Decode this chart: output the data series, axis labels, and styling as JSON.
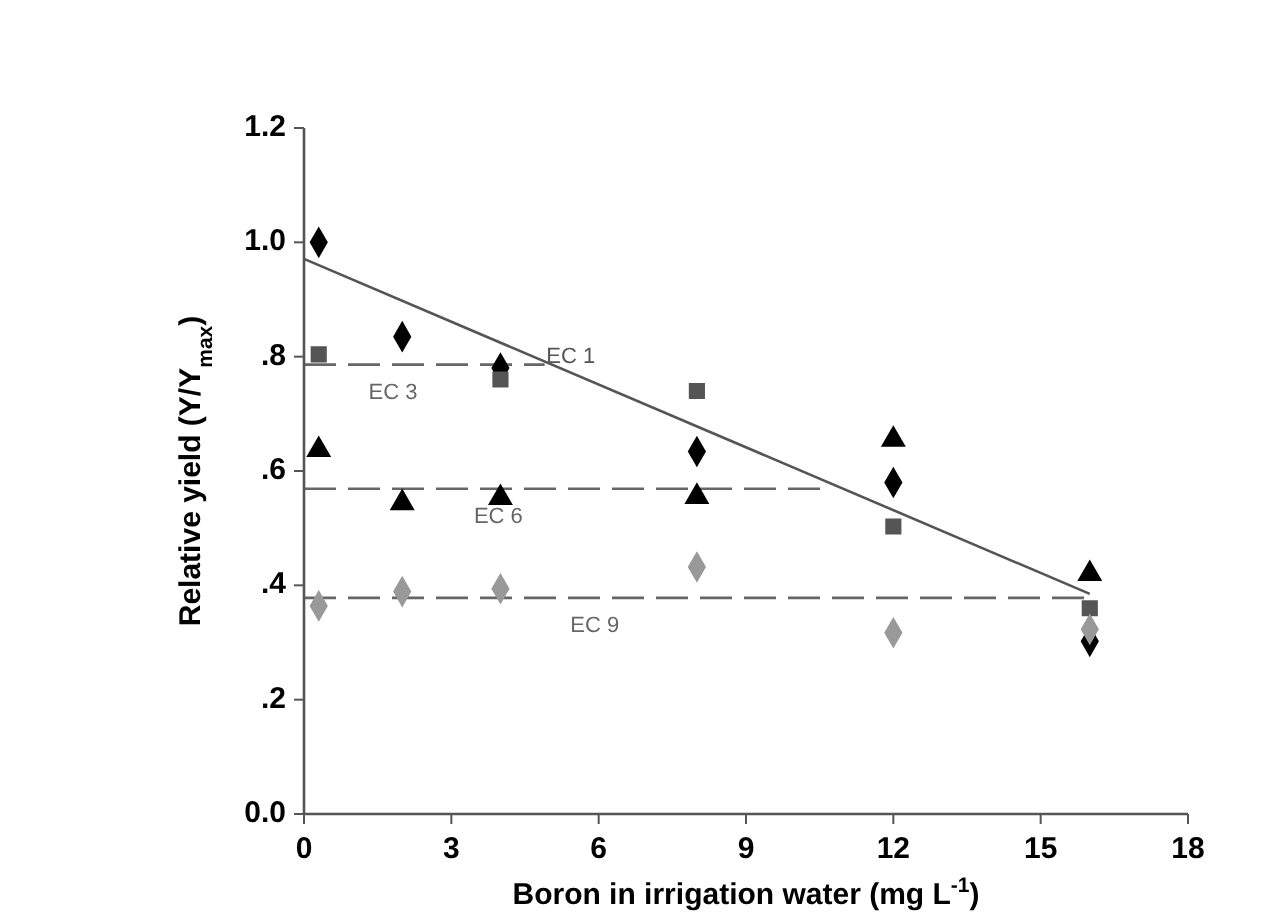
{
  "chart_data": {
    "type": "scatter",
    "xlabel": "Boron in irrigation water (mg L$^{-1}$)",
    "ylabel": "Relative yield (Y/Y$_{max}$)",
    "xlim": [
      0,
      18
    ],
    "xticks": [
      0,
      3,
      6,
      9,
      12,
      15,
      18
    ],
    "ylim": [
      0,
      1.2
    ],
    "yticks": [
      {
        "value": 0,
        "label": "0.0"
      },
      {
        "value": 0.2,
        "label": ".2"
      },
      {
        "value": 0.4,
        "label": ".4"
      },
      {
        "value": 0.6,
        "label": ".6"
      },
      {
        "value": 0.8,
        "label": ".8"
      },
      {
        "value": 1,
        "label": "1.0"
      },
      {
        "value": 1.2,
        "label": "1.2"
      }
    ],
    "grid": false,
    "series": [
      {
        "marker": "diamond",
        "color": "#000000",
        "x": [
          0.3,
          2,
          4,
          8,
          12,
          16
        ],
        "values": [
          1.0,
          0.835,
          0.78,
          0.634,
          0.58,
          0.302
        ]
      },
      {
        "marker": "square",
        "color": "#555555",
        "x": [
          0.3,
          4,
          8,
          12,
          16
        ],
        "values": [
          0.804,
          0.76,
          0.74,
          0.503,
          0.36
        ]
      },
      {
        "marker": "triangle",
        "color": "#000000",
        "x": [
          0.3,
          2,
          4,
          8,
          12,
          16
        ],
        "values": [
          0.637,
          0.544,
          0.553,
          0.555,
          0.655,
          0.42
        ]
      },
      {
        "marker": "diamond",
        "color": "#999999",
        "x": [
          0.3,
          2,
          4,
          8,
          12,
          16
        ],
        "values": [
          0.364,
          0.389,
          0.394,
          0.432,
          0.317,
          0.323
        ]
      },
      {
        "type": "line",
        "name": "EC 1",
        "line_style": "solid",
        "color": "#555555",
        "x": [
          0,
          16
        ],
        "values": [
          0.971,
          0.385
        ]
      },
      {
        "type": "line",
        "name": "EC 3",
        "line_style": "dashed",
        "color": "#666666",
        "x": [
          0,
          4.9
        ],
        "values": [
          0.786,
          0.786
        ]
      },
      {
        "type": "line",
        "name": "EC 6",
        "line_style": "dashed",
        "color": "#666666",
        "x": [
          0,
          10.7
        ],
        "values": [
          0.569,
          0.569
        ]
      },
      {
        "type": "line",
        "name": "EC 9",
        "line_style": "dashed",
        "color": "#666666",
        "x": [
          0,
          16
        ],
        "values": [
          0.378,
          0.378
        ]
      }
    ]
  }
}
